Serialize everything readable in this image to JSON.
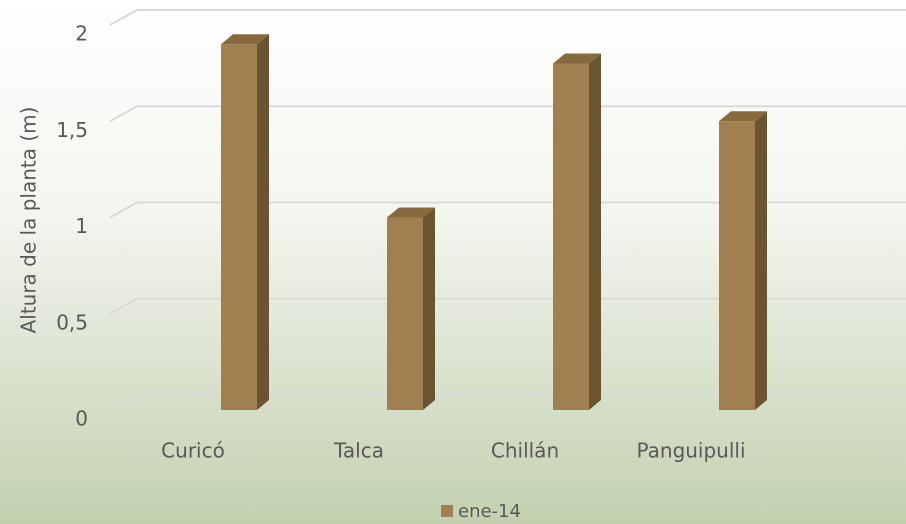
{
  "chart_data": {
    "type": "bar",
    "y_label": "Altura de la planta (m)",
    "categories": [
      "Curicó",
      "Talca",
      "Chillán",
      "Panguipulli"
    ],
    "series": [
      {
        "name": "ene-14",
        "color": "#a08050",
        "values": [
          1.9,
          1.0,
          1.8,
          1.5
        ]
      }
    ],
    "ylim": [
      0,
      2
    ],
    "yticks": [
      0,
      {
        "value": 0.5,
        "label": "0,5"
      },
      1,
      {
        "value": 1.5,
        "label": "1,5"
      },
      2
    ],
    "grid": true,
    "legend": "bottom"
  }
}
